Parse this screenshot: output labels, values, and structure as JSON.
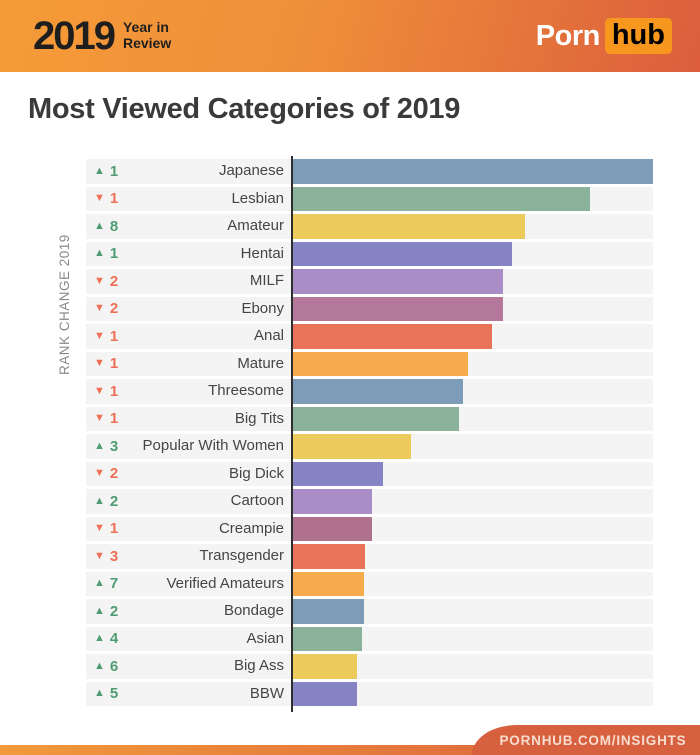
{
  "header": {
    "year": "2019",
    "subtitle_line1": "Year in",
    "subtitle_line2": "Review",
    "logo_part1": "Porn",
    "logo_part2": "hub"
  },
  "title": "Most Viewed Categories of 2019",
  "footer": {
    "url": "PORNHUB.COM/INSIGHTS"
  },
  "colors": {
    "header_gradient_left": "#f59b38",
    "header_gradient_right": "#dc5e3c",
    "logo_badge_orange": "#f7971d",
    "rank_up_green": "#4f9c73",
    "rank_down_red": "#ee6f55",
    "title_text": "#3a3a3a",
    "row_background": "#f4f4f4",
    "footer_tab": "#d7603e"
  },
  "chart_data": {
    "type": "bar",
    "orientation": "horizontal",
    "title": "Most Viewed Categories of 2019",
    "row_axis_label": "RANK CHANGE 2019",
    "grid": false,
    "legend": false,
    "categories": [
      "Japanese",
      "Lesbian",
      "Amateur",
      "Hentai",
      "MILF",
      "Ebony",
      "Anal",
      "Mature",
      "Threesome",
      "Big Tits",
      "Popular With Women",
      "Big Dick",
      "Cartoon",
      "Creampie",
      "Transgender",
      "Verified Amateurs",
      "Bondage",
      "Asian",
      "Big Ass",
      "BBW"
    ],
    "rank_changes": [
      {
        "direction": "up",
        "value": 1
      },
      {
        "direction": "down",
        "value": 1
      },
      {
        "direction": "up",
        "value": 8
      },
      {
        "direction": "up",
        "value": 1
      },
      {
        "direction": "down",
        "value": 2
      },
      {
        "direction": "down",
        "value": 2
      },
      {
        "direction": "down",
        "value": 1
      },
      {
        "direction": "down",
        "value": 1
      },
      {
        "direction": "down",
        "value": 1
      },
      {
        "direction": "down",
        "value": 1
      },
      {
        "direction": "up",
        "value": 3
      },
      {
        "direction": "down",
        "value": 2
      },
      {
        "direction": "up",
        "value": 2
      },
      {
        "direction": "down",
        "value": 1
      },
      {
        "direction": "down",
        "value": 3
      },
      {
        "direction": "up",
        "value": 7
      },
      {
        "direction": "up",
        "value": 2
      },
      {
        "direction": "up",
        "value": 4
      },
      {
        "direction": "up",
        "value": 6
      },
      {
        "direction": "up",
        "value": 5
      }
    ],
    "values_pct_of_max": [
      100,
      82.5,
      64.5,
      60.8,
      58.4,
      58.3,
      55.4,
      48.7,
      47.2,
      46.1,
      32.8,
      25.0,
      22.0,
      22.0,
      20.1,
      19.8,
      19.8,
      19.2,
      17.8,
      17.8
    ],
    "bar_colors": [
      "#7d9cb8",
      "#8bb29a",
      "#edca5c",
      "#8583c4",
      "#a98dc6",
      "#b3789a",
      "#e97358",
      "#f6ab4c",
      "#7d9cb8",
      "#8bb29a",
      "#edca5c",
      "#8583c4",
      "#a98dc6",
      "#b0718f",
      "#e97358",
      "#f6ab4c",
      "#7d9cb8",
      "#8bb29a",
      "#edca5c",
      "#8583c4"
    ]
  }
}
